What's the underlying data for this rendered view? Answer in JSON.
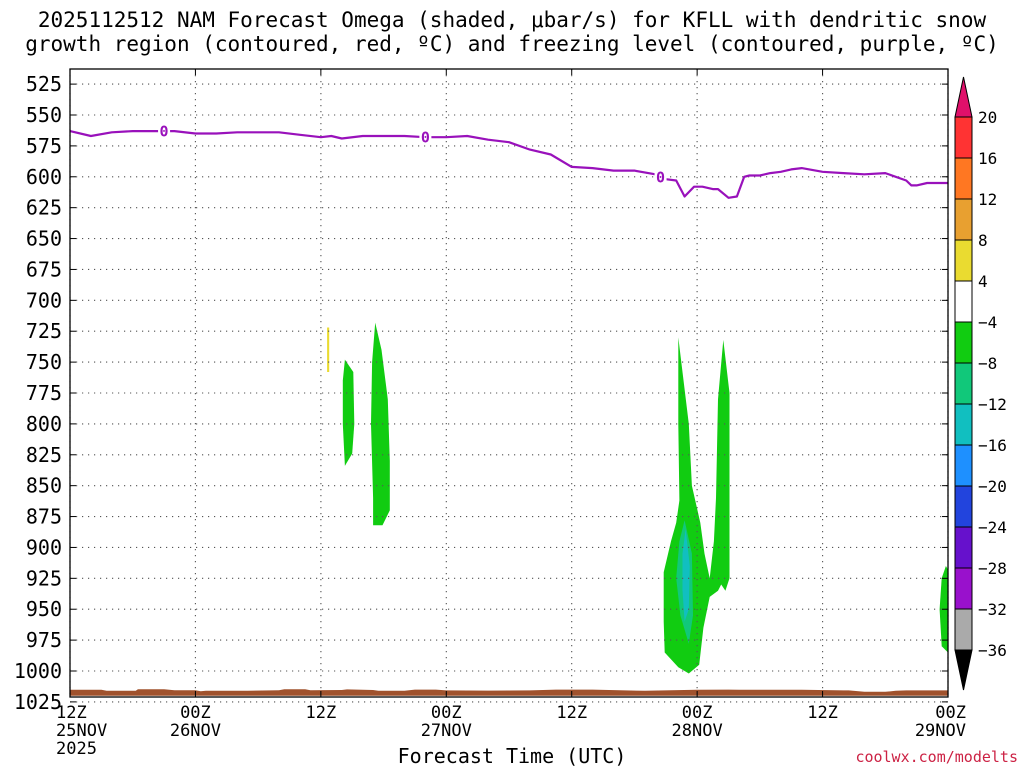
{
  "title_line1": "2025112512 NAM Forecast Omega (shaded, μbar/s) for KFLL with dendritic snow",
  "title_line2": "growth region (contoured, red, ºC) and freezing level (contoured, purple, ºC)",
  "credit": "coolwx.com/modelts",
  "chart_data": {
    "type": "heatmap",
    "xlabel": "Forecast Time (UTC)",
    "x_range_hours": [
      0,
      84
    ],
    "x_ticks": [
      {
        "hour": 0,
        "line1": "12Z",
        "line2": "25NOV",
        "line3": "2025"
      },
      {
        "hour": 12,
        "line1": "00Z",
        "line2": "26NOV"
      },
      {
        "hour": 24,
        "line1": "12Z",
        "line2": ""
      },
      {
        "hour": 36,
        "line1": "00Z",
        "line2": "27NOV"
      },
      {
        "hour": 48,
        "line1": "12Z",
        "line2": ""
      },
      {
        "hour": 60,
        "line1": "00Z",
        "line2": "28NOV"
      },
      {
        "hour": 72,
        "line1": "12Z",
        "line2": ""
      },
      {
        "hour": 84,
        "line1": "00Z",
        "line2": "29NOV"
      }
    ],
    "y_ticks_hPa": [
      "525",
      "550",
      "575",
      "600",
      "625",
      "650",
      "675",
      "700",
      "725",
      "750",
      "775",
      "800",
      "825",
      "850",
      "875",
      "900",
      "925",
      "950",
      "975",
      "1000",
      "1025"
    ],
    "y_range_hPa": [
      520,
      1030
    ],
    "colorbar": {
      "labels": [
        "20",
        "16",
        "12",
        "8",
        "4",
        "−4",
        "−8",
        "−12",
        "−16",
        "−20",
        "−24",
        "−28",
        "−32",
        "−36"
      ],
      "top_color": "#e0106a",
      "bottom_color": "#000000",
      "bins": [
        "#ff3333",
        "#ff7722",
        "#e8a030",
        "#eadb30",
        "#ffffff",
        "#11cc11",
        "#11c87a",
        "#11bfc0",
        "#1e90ff",
        "#2244dd",
        "#6611cc",
        "#9911cc",
        "#aaaaaa"
      ]
    },
    "freezing_level": {
      "color": "#9911bb",
      "label": "0",
      "label_hours": [
        9,
        34,
        56.5
      ],
      "points": [
        [
          0,
          563
        ],
        [
          2,
          567
        ],
        [
          4,
          564
        ],
        [
          6,
          563
        ],
        [
          8,
          563
        ],
        [
          10,
          563
        ],
        [
          12,
          565
        ],
        [
          14,
          565
        ],
        [
          16,
          564
        ],
        [
          18,
          564
        ],
        [
          20,
          564
        ],
        [
          22,
          566
        ],
        [
          24,
          568
        ],
        [
          25,
          567
        ],
        [
          26,
          569
        ],
        [
          28,
          567
        ],
        [
          32,
          567
        ],
        [
          34,
          568
        ],
        [
          36,
          568
        ],
        [
          38,
          567
        ],
        [
          40,
          570
        ],
        [
          42,
          572
        ],
        [
          44,
          578
        ],
        [
          46,
          582
        ],
        [
          48,
          592
        ],
        [
          50,
          593
        ],
        [
          52,
          595
        ],
        [
          54,
          595
        ],
        [
          56,
          598
        ],
        [
          57,
          602
        ],
        [
          58,
          603
        ],
        [
          58.8,
          616
        ],
        [
          59.7,
          608
        ],
        [
          60.5,
          608
        ],
        [
          61.5,
          610
        ],
        [
          62,
          610
        ],
        [
          63,
          617
        ],
        [
          63.8,
          616
        ],
        [
          64.5,
          600
        ],
        [
          65,
          599
        ],
        [
          66,
          599
        ],
        [
          67,
          597
        ],
        [
          68,
          596
        ],
        [
          69,
          594
        ],
        [
          70,
          593
        ],
        [
          72,
          596
        ],
        [
          74,
          597
        ],
        [
          76,
          598
        ],
        [
          78,
          597
        ],
        [
          80,
          603
        ],
        [
          80.5,
          607
        ],
        [
          81,
          607
        ],
        [
          82,
          605
        ],
        [
          84,
          605
        ]
      ]
    },
    "omega_regions": [
      {
        "bin": "4 to 8",
        "color": "#eadb30",
        "points": [
          [
            24.6,
            722
          ],
          [
            24.8,
            722
          ],
          [
            24.8,
            758
          ],
          [
            24.6,
            758
          ]
        ]
      },
      {
        "bin": "-4 to -8",
        "color": "#11cc11",
        "points": [
          [
            26.3,
            748
          ],
          [
            27.1,
            758
          ],
          [
            27.2,
            800
          ],
          [
            27.0,
            824
          ],
          [
            26.3,
            834
          ],
          [
            26.1,
            800
          ],
          [
            26.1,
            765
          ]
        ]
      },
      {
        "bin": "-4 to -8",
        "color": "#11cc11",
        "points": [
          [
            29.2,
            718
          ],
          [
            29.8,
            740
          ],
          [
            30.4,
            780
          ],
          [
            30.6,
            830
          ],
          [
            30.6,
            870
          ],
          [
            29.9,
            882
          ],
          [
            29.0,
            882
          ],
          [
            29.0,
            860
          ],
          [
            28.8,
            800
          ],
          [
            28.9,
            750
          ]
        ]
      },
      {
        "bin": "-4 to -8",
        "color": "#11cc11",
        "points": [
          [
            58.2,
            730
          ],
          [
            59.2,
            800
          ],
          [
            59.5,
            850
          ],
          [
            60.3,
            880
          ],
          [
            60.7,
            905
          ],
          [
            61.2,
            925
          ],
          [
            61.6,
            895
          ],
          [
            61.8,
            860
          ],
          [
            62.0,
            780
          ],
          [
            62.5,
            732
          ],
          [
            63.1,
            775
          ],
          [
            63.1,
            925
          ],
          [
            62.7,
            935
          ],
          [
            62.3,
            930
          ],
          [
            62.0,
            935
          ],
          [
            61.2,
            940
          ],
          [
            60.6,
            965
          ],
          [
            60.2,
            995
          ],
          [
            59.2,
            1002
          ],
          [
            58.2,
            997
          ],
          [
            56.9,
            985
          ],
          [
            56.8,
            960
          ],
          [
            56.8,
            920
          ],
          [
            57.5,
            895
          ],
          [
            58.0,
            880
          ],
          [
            58.3,
            862
          ],
          [
            58.2,
            800
          ]
        ]
      },
      {
        "bin": "-8 to -12",
        "color": "#11c87a",
        "points": [
          [
            58.8,
            878
          ],
          [
            59.5,
            905
          ],
          [
            59.6,
            955
          ],
          [
            59.2,
            978
          ],
          [
            58.4,
            955
          ],
          [
            58.0,
            925
          ],
          [
            58.3,
            895
          ]
        ]
      },
      {
        "bin": "-12 to -16",
        "color": "#11bfc0",
        "points": [
          [
            58.9,
            885
          ],
          [
            59.3,
            915
          ],
          [
            59.2,
            950
          ],
          [
            58.8,
            960
          ],
          [
            58.6,
            935
          ],
          [
            58.6,
            905
          ]
        ]
      },
      {
        "bin": "-4 to -8",
        "color": "#11cc11",
        "points": [
          [
            84,
            918
          ],
          [
            84,
            985
          ],
          [
            83.4,
            980
          ],
          [
            83.2,
            950
          ],
          [
            83.4,
            925
          ],
          [
            83.8,
            915
          ]
        ]
      }
    ],
    "terrain": {
      "color": "#a0522d",
      "pressure_top_hPa": 1016,
      "pressure_bottom_hPa": 1020
    }
  }
}
